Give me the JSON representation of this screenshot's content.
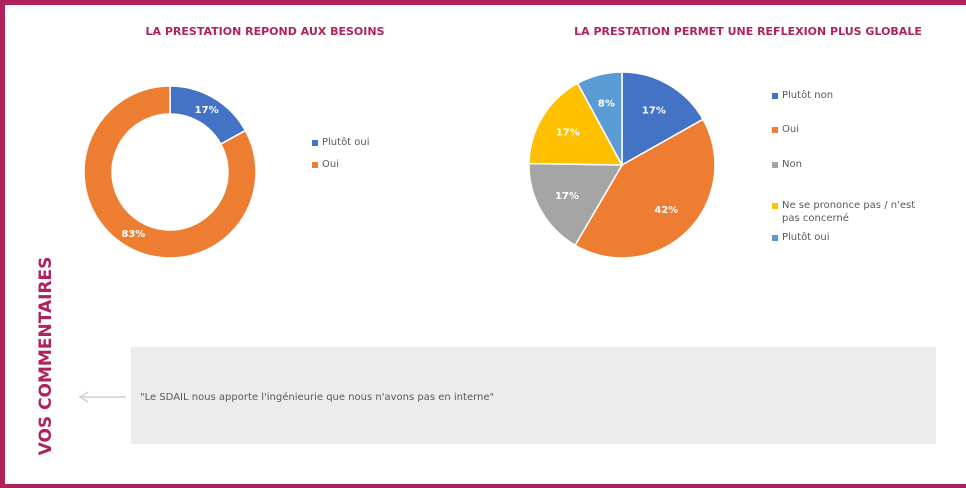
{
  "side_label": "VOS COMMENTAIRES",
  "comment": "\"Le SDAIL nous apporte l'ingénieurie que nous n'avons pas en interne\"",
  "chart_data": [
    {
      "type": "donut",
      "title": "LA PRESTATION REPOND AUX BESOINS",
      "categories": [
        "Plutôt oui",
        "Oui"
      ],
      "values": [
        17,
        83
      ],
      "value_labels": [
        "17%",
        "83%"
      ],
      "colors": [
        "#4472c4",
        "#ed7d31"
      ],
      "legend": "right"
    },
    {
      "type": "pie",
      "title": "LA PRESTATION PERMET UNE REFLEXION PLUS GLOBALE",
      "categories": [
        "Plutôt non",
        "Oui",
        "Non",
        "Ne se prononce pas / n'est pas concerné",
        "Plutôt oui"
      ],
      "values": [
        17,
        42,
        17,
        17,
        8
      ],
      "value_labels": [
        "17%",
        "42%",
        "17%",
        "17%",
        "8%"
      ],
      "colors": [
        "#4472c4",
        "#ed7d31",
        "#a5a5a5",
        "#ffc000",
        "#5b9bd5"
      ],
      "legend": "right"
    }
  ]
}
